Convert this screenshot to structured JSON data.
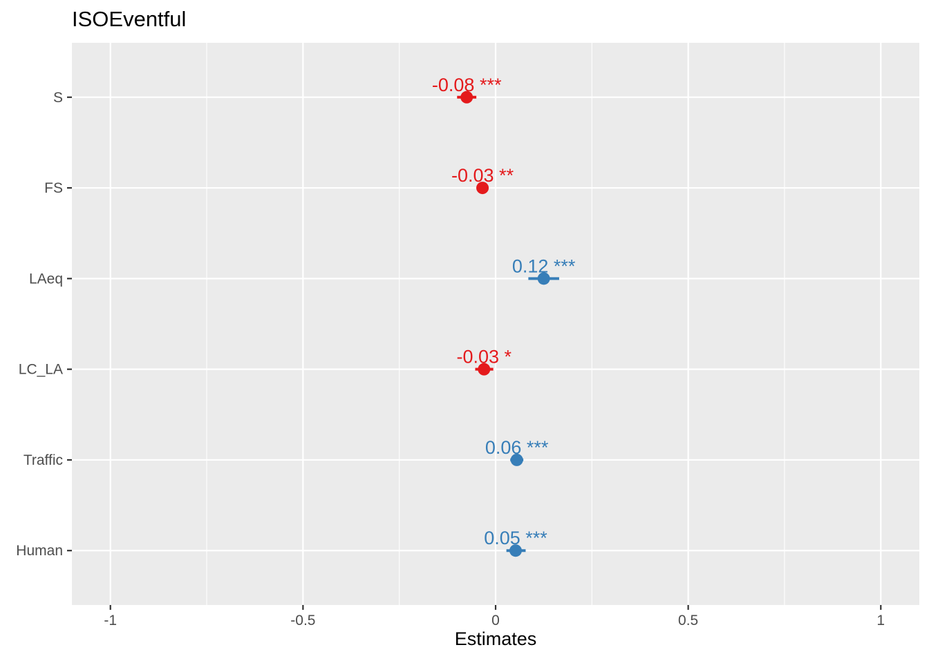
{
  "title": "ISOEventful",
  "colors": {
    "negative": "#E41A1C",
    "positive": "#377EB8",
    "panel_background": "#EBEBEB",
    "grid": "#FFFFFF",
    "axis_text": "#4D4D4D"
  },
  "chart_data": {
    "type": "scatter",
    "subtype": "coefficient-plot",
    "title": "ISOEventful",
    "xlabel": "Estimates",
    "ylabel": "",
    "xlim": [
      -1.1,
      1.1
    ],
    "x_ticks": [
      -1,
      -0.5,
      0,
      0.5,
      1
    ],
    "x_tick_labels": [
      "-1",
      "-0.5",
      "0",
      "0.5",
      "1"
    ],
    "grid": true,
    "legend": "none",
    "terms": [
      {
        "name": "S",
        "estimate": -0.075,
        "ci_low": -0.1,
        "ci_high": -0.05,
        "label": "-0.08 ***",
        "sign": "negative"
      },
      {
        "name": "FS",
        "estimate": -0.034,
        "ci_low": -0.048,
        "ci_high": -0.02,
        "label": "-0.03 **",
        "sign": "negative"
      },
      {
        "name": "LAeq",
        "estimate": 0.125,
        "ci_low": 0.085,
        "ci_high": 0.165,
        "label": "0.12 ***",
        "sign": "positive"
      },
      {
        "name": "LC_LA",
        "estimate": -0.03,
        "ci_low": -0.053,
        "ci_high": -0.006,
        "label": "-0.03 *",
        "sign": "negative"
      },
      {
        "name": "Traffic",
        "estimate": 0.055,
        "ci_low": 0.038,
        "ci_high": 0.072,
        "label": "0.06 ***",
        "sign": "positive"
      },
      {
        "name": "Human",
        "estimate": 0.052,
        "ci_low": 0.028,
        "ci_high": 0.078,
        "label": "0.05 ***",
        "sign": "positive"
      }
    ]
  }
}
